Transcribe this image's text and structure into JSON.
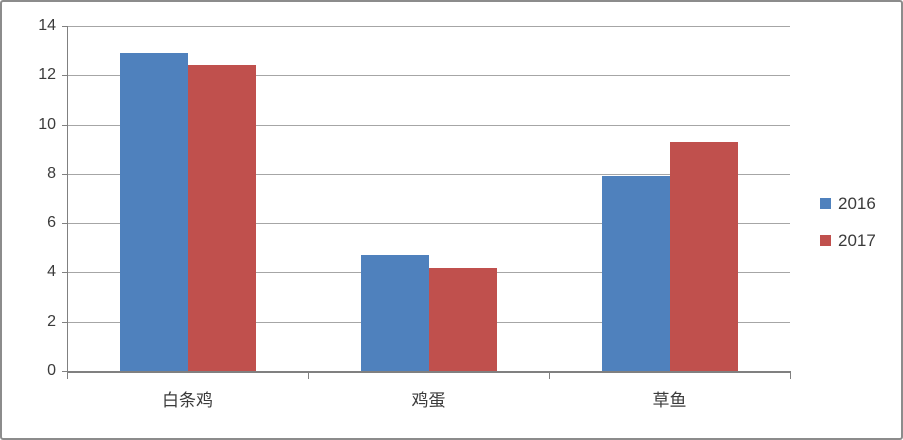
{
  "chart_data": {
    "type": "bar",
    "title": "",
    "xlabel": "",
    "ylabel": "",
    "categories": [
      "白条鸡",
      "鸡蛋",
      "草鱼"
    ],
    "series": [
      {
        "name": "2016",
        "color": "#4F81BD",
        "values": [
          12.9,
          4.7,
          7.9
        ]
      },
      {
        "name": "2017",
        "color": "#C0504D",
        "values": [
          12.4,
          4.2,
          9.3
        ]
      }
    ],
    "ylim": [
      0,
      14
    ],
    "yticks": [
      0,
      2,
      4,
      6,
      8,
      10,
      12,
      14
    ],
    "grid": true,
    "legend_position": "right"
  },
  "legend": {
    "items": [
      {
        "label": "2016",
        "color": "#4F81BD"
      },
      {
        "label": "2017",
        "color": "#C0504D"
      }
    ]
  },
  "colors": {
    "series_2016": "#4F81BD",
    "series_2017": "#C0504D",
    "gridline": "#a6a6a6",
    "axis": "#808080",
    "text": "#3b3b3b",
    "frame_border": "#8c8c8c",
    "background": "#ffffff"
  }
}
